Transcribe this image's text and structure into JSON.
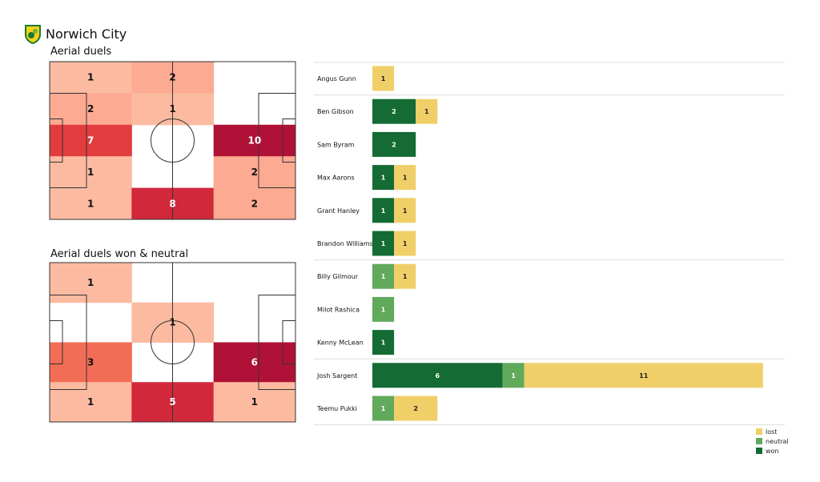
{
  "header": {
    "team": "Norwich City"
  },
  "colors": {
    "won": "#146b34",
    "neutral": "#61a95b",
    "lost": "#f0cf68",
    "pitch_line": "#333333",
    "separator": "#dddddd"
  },
  "chart_data": [
    {
      "type": "heatmap",
      "title": "Aerial duels",
      "rows": 5,
      "cols": 3,
      "values": [
        [
          1,
          2,
          0
        ],
        [
          2,
          1,
          0
        ],
        [
          7,
          0,
          10
        ],
        [
          1,
          0,
          2
        ],
        [
          1,
          8,
          2
        ]
      ],
      "cell_colors": [
        [
          "#fcbba1",
          "#fcaa91",
          ""
        ],
        [
          "#fcaa91",
          "#fcbba1",
          ""
        ],
        [
          "#e33c3f",
          "",
          "#b01237"
        ],
        [
          "#fcbba1",
          "",
          "#fcaa91"
        ],
        [
          "#fcbba1",
          "#d2283b",
          "#fcaa91"
        ]
      ]
    },
    {
      "type": "heatmap",
      "title": "Aerial duels won & neutral",
      "rows": 4,
      "cols": 3,
      "values": [
        [
          1,
          0,
          0
        ],
        [
          0,
          1,
          0
        ],
        [
          3,
          0,
          6
        ],
        [
          1,
          5,
          1
        ]
      ],
      "cell_colors": [
        [
          "#fcbba1",
          "",
          ""
        ],
        [
          "",
          "#fcbba1",
          ""
        ],
        [
          "#f26d55",
          "",
          "#b01237"
        ],
        [
          "#fcbba1",
          "#d2283b",
          "#fcbba1"
        ]
      ]
    },
    {
      "type": "bar",
      "orientation": "horizontal",
      "stacked": true,
      "categories": [
        "Angus Gunn",
        "Ben Gibson",
        "Sam Byram",
        "Max Aarons",
        "Grant Hanley",
        "Brandon Williams",
        "Billy Gilmour",
        "Milot Rashica",
        "Kenny McLean",
        "Josh Sargent",
        "Teemu Pukki"
      ],
      "groups_end_after": [
        "Angus Gunn",
        "Brandon Williams",
        "Kenny McLean",
        "Teemu Pukki"
      ],
      "series": [
        {
          "name": "won",
          "values": [
            0,
            2,
            2,
            1,
            1,
            1,
            0,
            0,
            1,
            6,
            0
          ]
        },
        {
          "name": "neutral",
          "values": [
            0,
            0,
            0,
            0,
            0,
            0,
            1,
            1,
            0,
            1,
            1
          ]
        },
        {
          "name": "lost",
          "values": [
            1,
            1,
            0,
            1,
            1,
            1,
            1,
            0,
            0,
            11,
            2
          ]
        }
      ],
      "legend": {
        "position": "bottom-right",
        "entries": [
          "lost",
          "neutral",
          "won"
        ]
      }
    }
  ]
}
